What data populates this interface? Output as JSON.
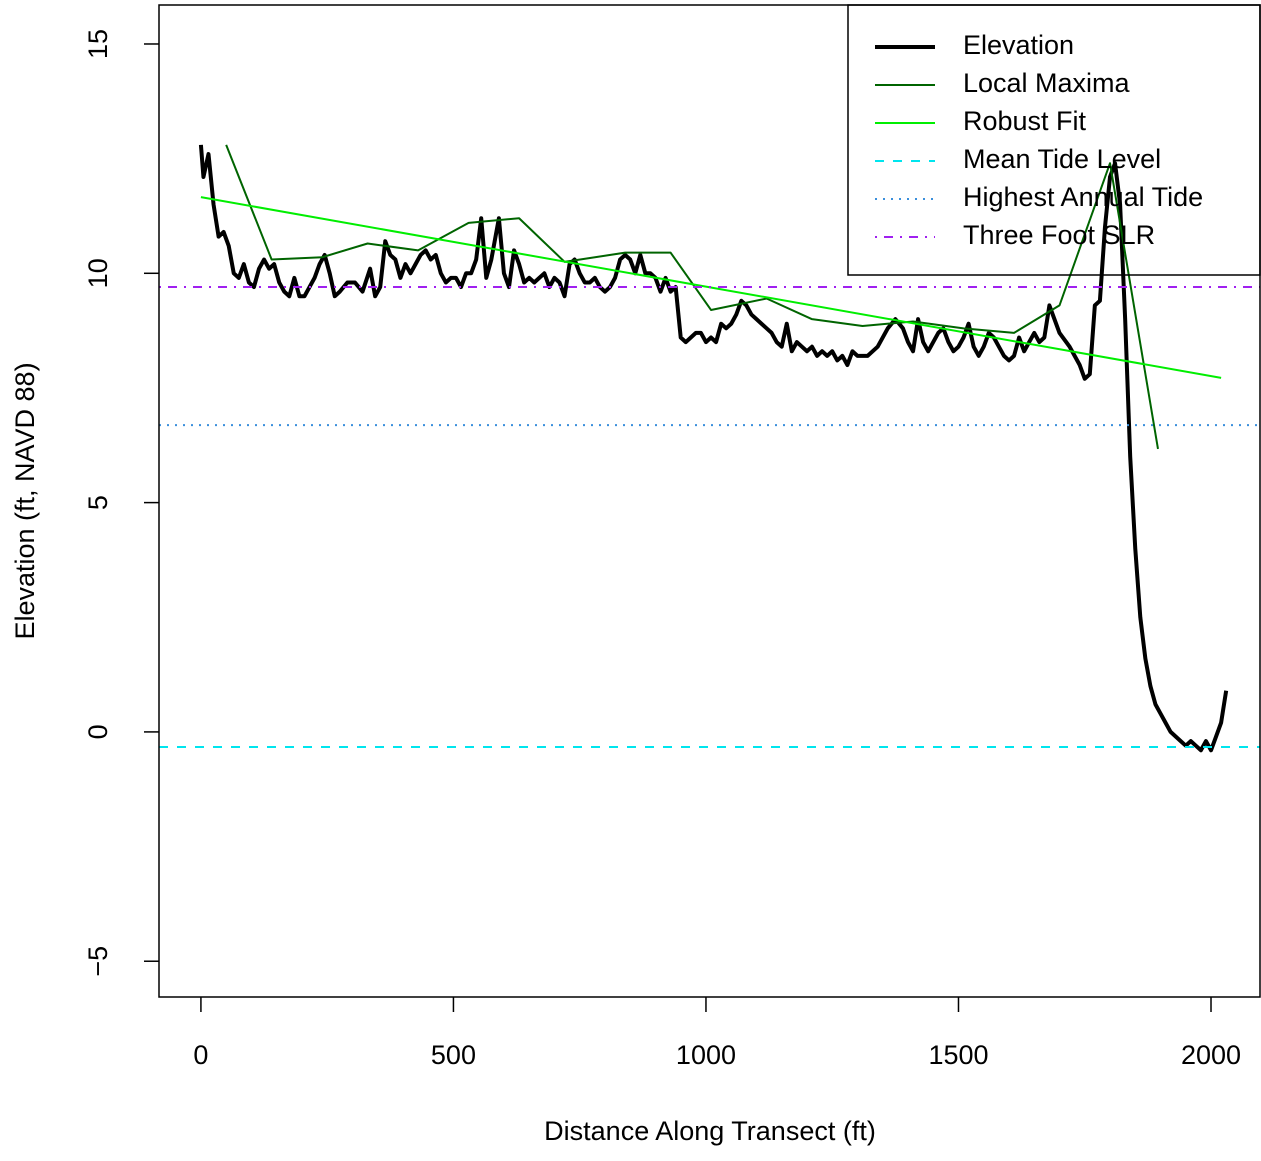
{
  "chart_data": {
    "type": "line",
    "x_label": "Distance Along Transect (ft)",
    "y_label": "Elevation (ft, NAVD 88)",
    "xlim": [
      -83,
      2097
    ],
    "ylim": [
      -5.78,
      15.85
    ],
    "xticks": [
      0,
      500,
      1000,
      1500,
      2000
    ],
    "yticks": [
      {
        "value": -5,
        "label": "−5"
      },
      0,
      5,
      10,
      15
    ],
    "legend": "topright",
    "series": [
      {
        "name": "Elevation",
        "color": "#000000",
        "linestyle": "solid",
        "linewidth": 4,
        "x": [
          0,
          5,
          15,
          25,
          35,
          45,
          55,
          65,
          75,
          85,
          95,
          105,
          115,
          125,
          135,
          145,
          155,
          165,
          175,
          185,
          195,
          205,
          215,
          225,
          235,
          245,
          255,
          265,
          275,
          290,
          305,
          320,
          335,
          345,
          355,
          365,
          375,
          385,
          395,
          405,
          415,
          425,
          435,
          445,
          455,
          465,
          475,
          485,
          495,
          505,
          515,
          525,
          535,
          545,
          555,
          565,
          575,
          590,
          600,
          610,
          620,
          630,
          640,
          650,
          660,
          670,
          680,
          690,
          700,
          710,
          720,
          730,
          740,
          750,
          760,
          770,
          780,
          790,
          800,
          810,
          820,
          830,
          840,
          850,
          860,
          870,
          880,
          890,
          900,
          910,
          920,
          930,
          940,
          950,
          960,
          970,
          980,
          990,
          1000,
          1010,
          1020,
          1030,
          1040,
          1050,
          1060,
          1070,
          1080,
          1090,
          1100,
          1110,
          1120,
          1130,
          1140,
          1150,
          1160,
          1170,
          1180,
          1190,
          1200,
          1210,
          1220,
          1230,
          1240,
          1250,
          1260,
          1270,
          1280,
          1290,
          1300,
          1320,
          1340,
          1360,
          1375,
          1390,
          1400,
          1410,
          1420,
          1430,
          1440,
          1450,
          1460,
          1470,
          1480,
          1490,
          1500,
          1510,
          1520,
          1530,
          1540,
          1550,
          1560,
          1570,
          1580,
          1590,
          1600,
          1610,
          1620,
          1630,
          1640,
          1650,
          1660,
          1670,
          1680,
          1690,
          1700,
          1720,
          1740,
          1750,
          1760,
          1770,
          1780,
          1790,
          1800,
          1810,
          1820,
          1830,
          1840,
          1850,
          1860,
          1870,
          1880,
          1890,
          1900,
          1910,
          1920,
          1930,
          1940,
          1950,
          1960,
          1970,
          1980,
          1990,
          2000,
          2010,
          2020,
          2030
        ],
        "values": [
          12.8,
          12.1,
          12.6,
          11.5,
          10.8,
          10.9,
          10.6,
          10.0,
          9.9,
          10.2,
          9.8,
          9.7,
          10.1,
          10.3,
          10.1,
          10.2,
          9.8,
          9.6,
          9.5,
          9.9,
          9.5,
          9.5,
          9.7,
          9.9,
          10.2,
          10.4,
          10.0,
          9.5,
          9.6,
          9.8,
          9.8,
          9.6,
          10.1,
          9.5,
          9.7,
          10.7,
          10.4,
          10.3,
          9.9,
          10.2,
          10.0,
          10.2,
          10.4,
          10.5,
          10.3,
          10.4,
          10.0,
          9.8,
          9.9,
          9.9,
          9.7,
          10.0,
          10.0,
          10.3,
          11.2,
          9.9,
          10.3,
          11.2,
          10.0,
          9.7,
          10.5,
          10.2,
          9.8,
          9.9,
          9.8,
          9.9,
          10.0,
          9.7,
          9.9,
          9.8,
          9.5,
          10.2,
          10.3,
          10.0,
          9.8,
          9.8,
          9.9,
          9.7,
          9.6,
          9.7,
          9.9,
          10.3,
          10.4,
          10.3,
          10.0,
          10.4,
          10.0,
          10.0,
          9.9,
          9.6,
          9.9,
          9.6,
          9.7,
          8.6,
          8.5,
          8.6,
          8.7,
          8.7,
          8.5,
          8.6,
          8.5,
          8.9,
          8.8,
          8.9,
          9.1,
          9.4,
          9.3,
          9.1,
          9.0,
          8.9,
          8.8,
          8.7,
          8.5,
          8.4,
          8.9,
          8.3,
          8.5,
          8.4,
          8.3,
          8.4,
          8.2,
          8.3,
          8.2,
          8.3,
          8.1,
          8.2,
          8.0,
          8.3,
          8.2,
          8.2,
          8.4,
          8.8,
          9.0,
          8.8,
          8.5,
          8.3,
          9.0,
          8.5,
          8.3,
          8.5,
          8.7,
          8.8,
          8.5,
          8.3,
          8.4,
          8.6,
          8.9,
          8.4,
          8.2,
          8.4,
          8.7,
          8.6,
          8.4,
          8.2,
          8.1,
          8.2,
          8.6,
          8.3,
          8.5,
          8.7,
          8.5,
          8.6,
          9.3,
          9.0,
          8.7,
          8.4,
          8.0,
          7.7,
          7.8,
          9.3,
          9.4,
          11.0,
          12.1,
          12.4,
          11.5,
          9.0,
          6.0,
          4.0,
          2.5,
          1.6,
          1.0,
          0.6,
          0.4,
          0.2,
          0.0,
          -0.1,
          -0.2,
          -0.3,
          -0.2,
          -0.3,
          -0.4,
          -0.2,
          -0.4,
          -0.1,
          0.2,
          0.9
        ]
      },
      {
        "name": "Local Maxima",
        "color": "#006400",
        "linestyle": "solid",
        "linewidth": 2,
        "x": [
          50,
          140,
          240,
          330,
          430,
          530,
          630,
          720,
          840,
          930,
          1010,
          1120,
          1210,
          1310,
          1410,
          1510,
          1610,
          1700,
          1800,
          1895
        ],
        "values": [
          12.8,
          10.3,
          10.35,
          10.65,
          10.5,
          11.1,
          11.2,
          10.25,
          10.45,
          10.45,
          9.2,
          9.45,
          9.0,
          8.85,
          8.95,
          8.8,
          8.7,
          9.3,
          12.4,
          6.17
        ]
      },
      {
        "name": "Robust Fit",
        "color": "#00ee00",
        "linestyle": "solid",
        "linewidth": 2,
        "x": [
          0,
          2020
        ],
        "values": [
          11.66,
          7.72
        ]
      },
      {
        "name": "Mean Tide Level",
        "color": "#00e5ee",
        "linestyle": "dashed",
        "linewidth": 2,
        "kind": "hline",
        "values": [
          -0.33
        ]
      },
      {
        "name": "Highest Annual Tide",
        "color": "#3a8fdc",
        "linestyle": "dotted",
        "linewidth": 2,
        "kind": "hline",
        "values": [
          6.69
        ]
      },
      {
        "name": "Three Foot SLR",
        "color": "#a020f0",
        "linestyle": "dashdot",
        "linewidth": 2,
        "kind": "hline",
        "values": [
          9.7
        ]
      }
    ]
  }
}
